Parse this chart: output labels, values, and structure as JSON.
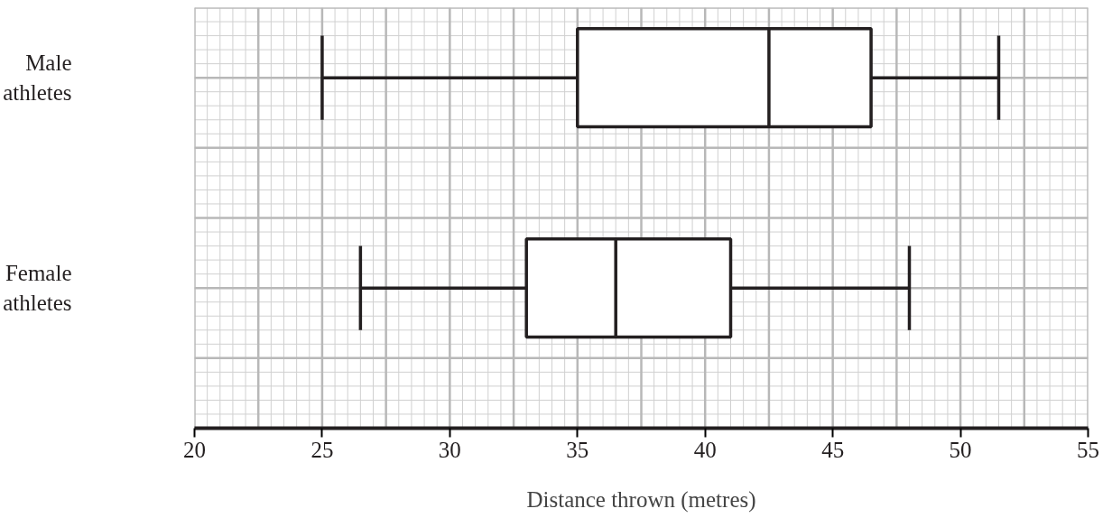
{
  "chart_data": {
    "type": "box",
    "orientation": "horizontal",
    "xlabel": "Distance thrown (metres)",
    "categories": [
      "Male athletes",
      "Female athletes"
    ],
    "boxes": [
      {
        "low": 25,
        "q1": 35,
        "median": 42.5,
        "q3": 46.5,
        "high": 51.5
      },
      {
        "low": 26.5,
        "q1": 33,
        "median": 36.5,
        "q3": 41,
        "high": 48
      }
    ],
    "color": "#231f20",
    "xlim": [
      20,
      55
    ],
    "xticks": [
      20,
      25,
      30,
      35,
      40,
      45,
      50,
      55
    ],
    "grid": true
  }
}
